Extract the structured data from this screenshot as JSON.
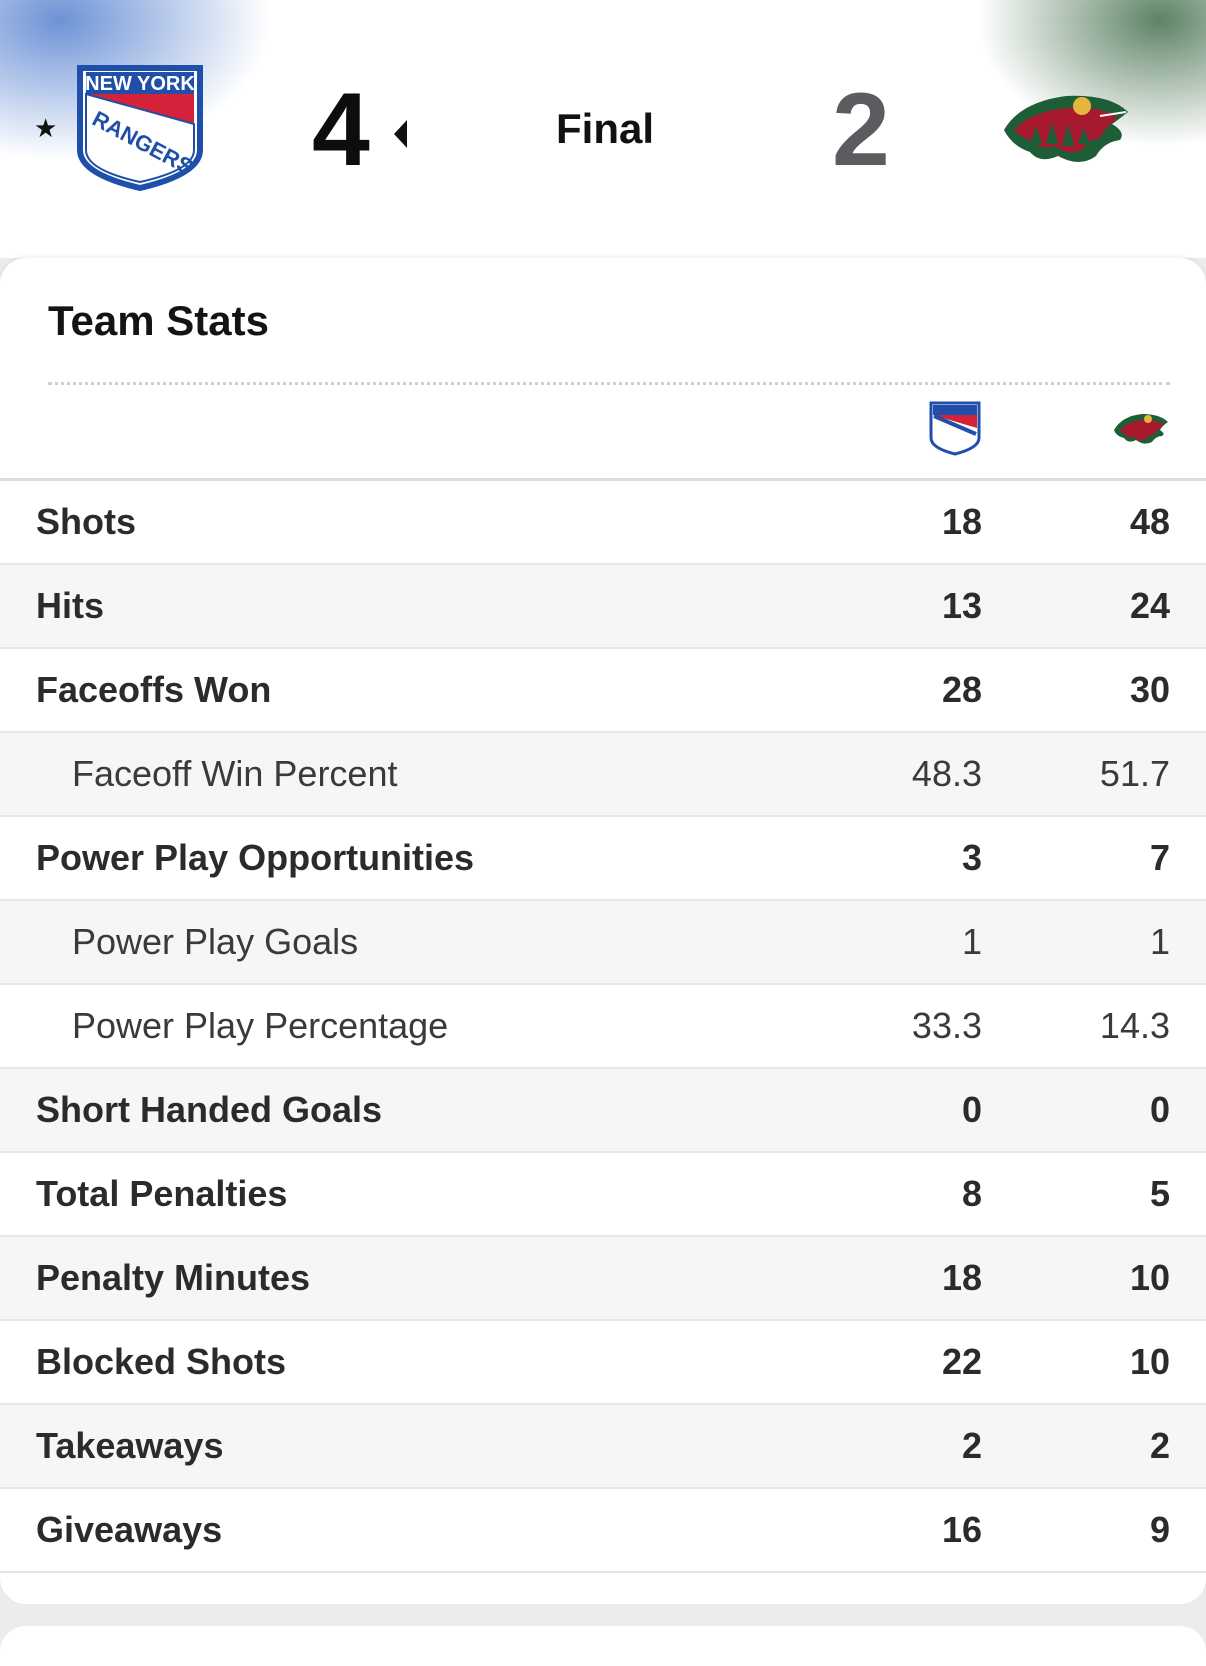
{
  "header": {
    "home_score": "4",
    "away_score": "2",
    "status": "Final",
    "favorite_icon": "star-icon",
    "winner_icon": "triangle-left-icon",
    "home_logo_text": [
      "NEW YORK",
      "RANGERS"
    ]
  },
  "stats": {
    "title": "Team Stats",
    "columns": [
      "rangers-logo",
      "wild-logo"
    ],
    "rows": [
      {
        "label": "Shots",
        "home": "18",
        "away": "48",
        "sub": false
      },
      {
        "label": "Hits",
        "home": "13",
        "away": "24",
        "sub": false
      },
      {
        "label": "Faceoffs Won",
        "home": "28",
        "away": "30",
        "sub": false
      },
      {
        "label": "Faceoff Win Percent",
        "home": "48.3",
        "away": "51.7",
        "sub": true
      },
      {
        "label": "Power Play Opportunities",
        "home": "3",
        "away": "7",
        "sub": false
      },
      {
        "label": "Power Play Goals",
        "home": "1",
        "away": "1",
        "sub": true
      },
      {
        "label": "Power Play Percentage",
        "home": "33.3",
        "away": "14.3",
        "sub": true
      },
      {
        "label": "Short Handed Goals",
        "home": "0",
        "away": "0",
        "sub": false
      },
      {
        "label": "Total Penalties",
        "home": "8",
        "away": "5",
        "sub": false
      },
      {
        "label": "Penalty Minutes",
        "home": "18",
        "away": "10",
        "sub": false
      },
      {
        "label": "Blocked Shots",
        "home": "22",
        "away": "10",
        "sub": false
      },
      {
        "label": "Takeaways",
        "home": "2",
        "away": "2",
        "sub": false
      },
      {
        "label": "Giveaways",
        "home": "16",
        "away": "9",
        "sub": false
      }
    ]
  },
  "colors": {
    "rangers_blue": "#1f4fa8",
    "rangers_red": "#d6213a",
    "wild_green": "#1d5e36",
    "wild_red": "#a6192e",
    "wild_gold": "#e7b43c"
  }
}
